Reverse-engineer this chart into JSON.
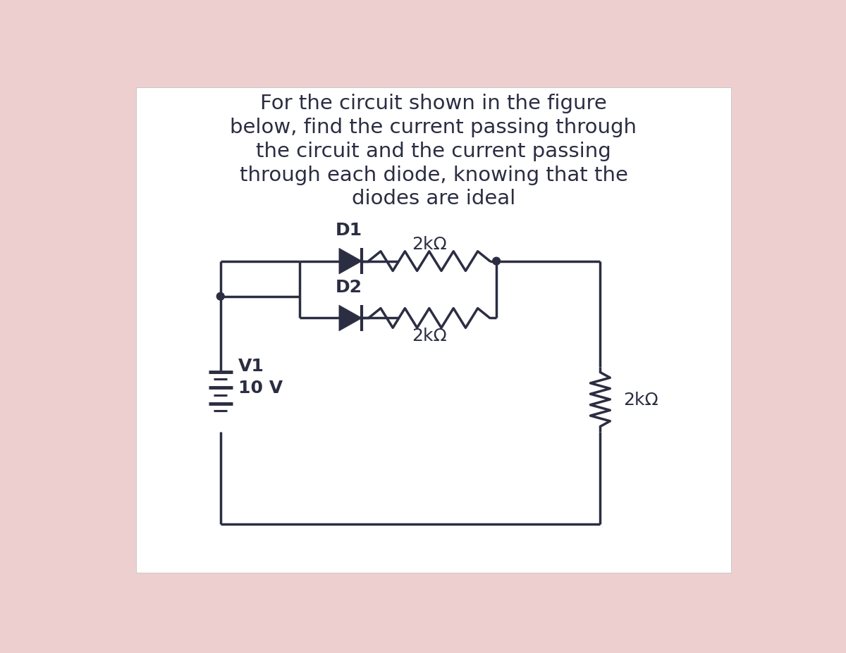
{
  "title_lines": [
    "For the circuit shown in the figure",
    "below, find the current passing through",
    "the circuit and the current passing",
    "through each diode, knowing that the",
    "diodes are ideal"
  ],
  "title_fontsize": 21,
  "background_outer": "#eecfcf",
  "background_inner": "#ffffff",
  "line_color": "#2b2d42",
  "text_color": "#2b2d42",
  "label_fontsize": 18,
  "line_width": 2.5
}
